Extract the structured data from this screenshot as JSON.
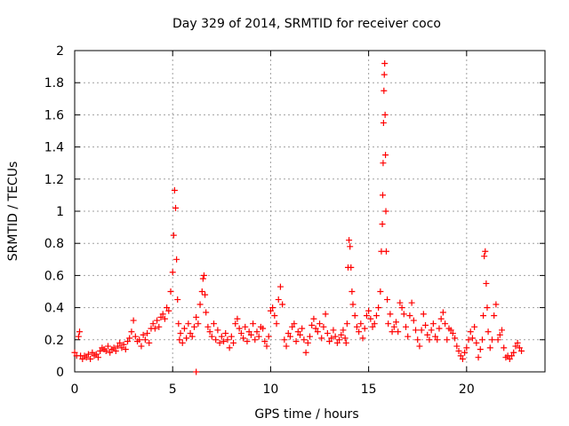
{
  "chart_data": {
    "type": "scatter",
    "title": "Day 329 of 2014, SRMTID for receiver coco",
    "xlabel": "GPS time / hours",
    "ylabel": "SRMTID / TECUs",
    "xlim": [
      0,
      24
    ],
    "ylim": [
      0,
      2
    ],
    "xticks": [
      0,
      5,
      10,
      15,
      20
    ],
    "xtick_labels": [
      "0",
      "5",
      "10",
      "15",
      "20"
    ],
    "yticks": [
      0,
      0.2,
      0.4,
      0.6,
      0.8,
      1,
      1.2,
      1.4,
      1.6,
      1.8,
      2
    ],
    "ytick_labels": [
      "0",
      "0.2",
      "0.4",
      "0.6",
      "0.8",
      "1",
      "1.2",
      "1.4",
      "1.6",
      "1.8",
      "2"
    ],
    "grid": true,
    "marker": "+",
    "marker_color": "#ff0000",
    "series": [
      {
        "name": "SRMTID",
        "x": [
          0.0,
          0.1,
          0.2,
          0.25,
          0.3,
          0.4,
          0.5,
          0.6,
          0.7,
          0.8,
          0.9,
          1.0,
          1.1,
          1.2,
          1.3,
          1.4,
          1.5,
          1.6,
          1.7,
          1.8,
          1.9,
          2.0,
          2.1,
          2.2,
          2.3,
          2.4,
          2.5,
          2.6,
          2.7,
          2.8,
          2.9,
          3.0,
          3.1,
          3.2,
          3.3,
          3.4,
          3.5,
          3.6,
          3.7,
          3.8,
          3.9,
          4.0,
          4.1,
          4.2,
          4.3,
          4.4,
          4.5,
          4.6,
          4.7,
          4.8,
          4.9,
          5.0,
          5.05,
          5.1,
          5.15,
          5.2,
          5.25,
          5.3,
          5.35,
          5.4,
          5.5,
          5.6,
          5.7,
          5.8,
          5.9,
          6.0,
          6.1,
          6.2,
          6.3,
          6.4,
          6.5,
          6.55,
          6.6,
          6.65,
          6.7,
          6.8,
          6.9,
          7.0,
          7.1,
          7.2,
          7.3,
          7.4,
          7.5,
          7.6,
          7.7,
          7.8,
          7.9,
          8.0,
          8.1,
          8.2,
          8.3,
          8.4,
          8.5,
          8.6,
          8.7,
          8.8,
          8.9,
          9.0,
          9.1,
          9.2,
          9.3,
          9.4,
          9.5,
          9.6,
          9.7,
          9.8,
          9.9,
          10.0,
          10.1,
          10.2,
          10.3,
          10.4,
          10.5,
          10.6,
          10.7,
          10.8,
          10.9,
          11.0,
          11.1,
          11.2,
          11.3,
          11.4,
          11.5,
          11.6,
          11.7,
          11.8,
          11.9,
          12.0,
          12.1,
          12.2,
          12.3,
          12.4,
          12.5,
          12.6,
          12.7,
          12.8,
          12.9,
          13.0,
          13.1,
          13.2,
          13.3,
          13.4,
          13.5,
          13.6,
          13.7,
          13.8,
          13.85,
          13.9,
          13.95,
          14.0,
          14.05,
          14.1,
          14.15,
          14.2,
          14.3,
          14.4,
          14.5,
          14.6,
          14.7,
          14.8,
          14.9,
          15.0,
          15.1,
          15.2,
          15.3,
          15.4,
          15.5,
          15.6,
          15.65,
          15.7,
          15.72,
          15.74,
          15.76,
          15.78,
          15.8,
          15.82,
          15.84,
          15.86,
          15.88,
          15.9,
          15.95,
          16.0,
          16.1,
          16.2,
          16.3,
          16.4,
          16.5,
          16.6,
          16.7,
          16.8,
          16.9,
          17.0,
          17.1,
          17.2,
          17.3,
          17.4,
          17.5,
          17.6,
          17.7,
          17.8,
          17.9,
          18.0,
          18.1,
          18.2,
          18.3,
          18.4,
          18.5,
          18.6,
          18.7,
          18.8,
          18.9,
          19.0,
          19.1,
          19.2,
          19.3,
          19.4,
          19.5,
          19.6,
          19.7,
          19.8,
          19.9,
          20.0,
          20.1,
          20.2,
          20.3,
          20.4,
          20.5,
          20.6,
          20.7,
          20.8,
          20.85,
          20.9,
          20.95,
          21.0,
          21.05,
          21.1,
          21.2,
          21.3,
          21.4,
          21.5,
          21.6,
          21.7,
          21.8,
          21.9,
          22.0,
          22.1,
          22.2,
          22.3,
          22.4,
          22.5,
          22.6,
          22.7,
          22.8,
          6.2
        ],
        "y": [
          0.12,
          0.1,
          0.22,
          0.25,
          0.1,
          0.08,
          0.1,
          0.09,
          0.11,
          0.08,
          0.12,
          0.1,
          0.11,
          0.09,
          0.13,
          0.15,
          0.14,
          0.13,
          0.16,
          0.12,
          0.14,
          0.15,
          0.13,
          0.16,
          0.18,
          0.15,
          0.17,
          0.14,
          0.19,
          0.21,
          0.25,
          0.32,
          0.22,
          0.19,
          0.2,
          0.16,
          0.23,
          0.2,
          0.24,
          0.18,
          0.27,
          0.3,
          0.27,
          0.32,
          0.28,
          0.34,
          0.36,
          0.33,
          0.4,
          0.38,
          0.5,
          0.62,
          0.85,
          1.13,
          1.02,
          0.7,
          0.45,
          0.3,
          0.2,
          0.24,
          0.18,
          0.27,
          0.21,
          0.3,
          0.24,
          0.22,
          0.28,
          0.34,
          0.3,
          0.42,
          0.5,
          0.58,
          0.6,
          0.48,
          0.37,
          0.28,
          0.25,
          0.22,
          0.3,
          0.2,
          0.26,
          0.18,
          0.22,
          0.19,
          0.24,
          0.2,
          0.15,
          0.22,
          0.18,
          0.3,
          0.33,
          0.27,
          0.24,
          0.21,
          0.28,
          0.19,
          0.25,
          0.23,
          0.3,
          0.2,
          0.25,
          0.22,
          0.28,
          0.27,
          0.19,
          0.16,
          0.22,
          0.38,
          0.4,
          0.35,
          0.3,
          0.45,
          0.53,
          0.42,
          0.2,
          0.16,
          0.24,
          0.22,
          0.28,
          0.3,
          0.19,
          0.25,
          0.23,
          0.27,
          0.2,
          0.12,
          0.18,
          0.22,
          0.29,
          0.33,
          0.27,
          0.25,
          0.3,
          0.21,
          0.28,
          0.36,
          0.24,
          0.19,
          0.21,
          0.26,
          0.22,
          0.18,
          0.2,
          0.23,
          0.26,
          0.21,
          0.18,
          0.3,
          0.65,
          0.82,
          0.78,
          0.65,
          0.5,
          0.42,
          0.35,
          0.28,
          0.25,
          0.3,
          0.21,
          0.27,
          0.35,
          0.38,
          0.33,
          0.28,
          0.3,
          0.35,
          0.4,
          0.5,
          0.75,
          0.92,
          1.1,
          1.3,
          1.55,
          1.75,
          1.85,
          1.92,
          1.6,
          1.35,
          1.0,
          0.75,
          0.45,
          0.3,
          0.36,
          0.25,
          0.28,
          0.31,
          0.25,
          0.43,
          0.4,
          0.36,
          0.28,
          0.22,
          0.35,
          0.43,
          0.32,
          0.26,
          0.2,
          0.16,
          0.26,
          0.36,
          0.29,
          0.23,
          0.2,
          0.26,
          0.3,
          0.22,
          0.2,
          0.27,
          0.33,
          0.37,
          0.3,
          0.2,
          0.27,
          0.26,
          0.24,
          0.21,
          0.16,
          0.13,
          0.1,
          0.08,
          0.12,
          0.15,
          0.2,
          0.25,
          0.21,
          0.28,
          0.18,
          0.09,
          0.14,
          0.2,
          0.35,
          0.72,
          0.75,
          0.55,
          0.4,
          0.25,
          0.15,
          0.2,
          0.35,
          0.42,
          0.2,
          0.23,
          0.26,
          0.15,
          0.09,
          0.1,
          0.08,
          0.1,
          0.12,
          0.16,
          0.18,
          0.15,
          0.13,
          0.0
        ]
      }
    ]
  }
}
